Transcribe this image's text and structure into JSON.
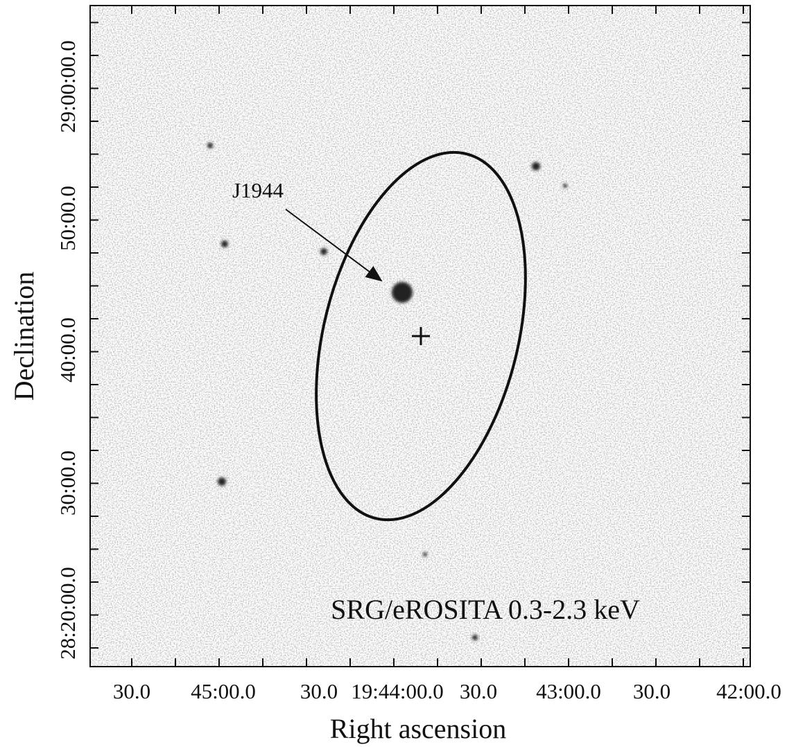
{
  "figure": {
    "x_label": "Right ascension",
    "y_label": "Declination",
    "x_tick_labels": [
      "30.0",
      "45:00.0",
      "30.0",
      "19:44:00.0",
      "30.0",
      "43:00.0",
      "30.0",
      "42:00.0"
    ],
    "y_tick_labels": [
      "28:20:00.0",
      "30:00.0",
      "40:00.0",
      "50:00.0",
      "29:00:00.0"
    ],
    "source_label": "J1944",
    "band_label": "SRG/eROSITA 0.3-2.3 keV"
  }
}
